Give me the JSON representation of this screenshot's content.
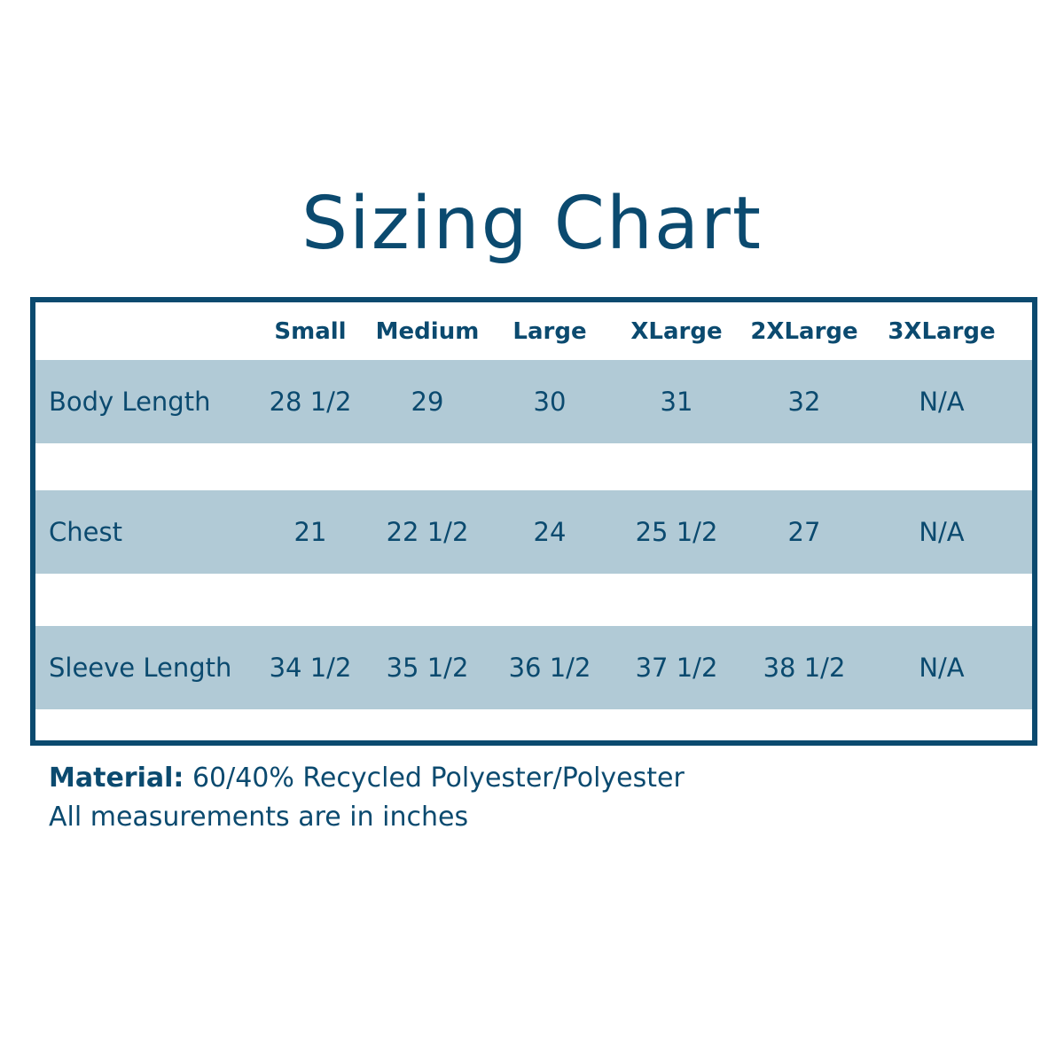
{
  "title": "Sizing Chart",
  "colors": {
    "primary": "#0b4a6f",
    "row_shade": "#b1cad6"
  },
  "table": {
    "columns": [
      "Small",
      "Medium",
      "Large",
      "XLarge",
      "2XLarge",
      "3XLarge"
    ],
    "rows": [
      {
        "label": "Body Length",
        "values": [
          "28 1/2",
          "29",
          "30",
          "31",
          "32",
          "N/A"
        ]
      },
      {
        "label": "Chest",
        "values": [
          "21",
          "22 1/2",
          "24",
          "25 1/2",
          "27",
          "N/A"
        ]
      },
      {
        "label": "Sleeve Length",
        "values": [
          "34 1/2",
          "35 1/2",
          "36 1/2",
          "37 1/2",
          "38 1/2",
          "N/A"
        ]
      }
    ]
  },
  "footer": {
    "material_label": "Material:",
    "material_value": "60/40% Recycled Polyester/Polyester",
    "note": "All measurements are in inches"
  }
}
